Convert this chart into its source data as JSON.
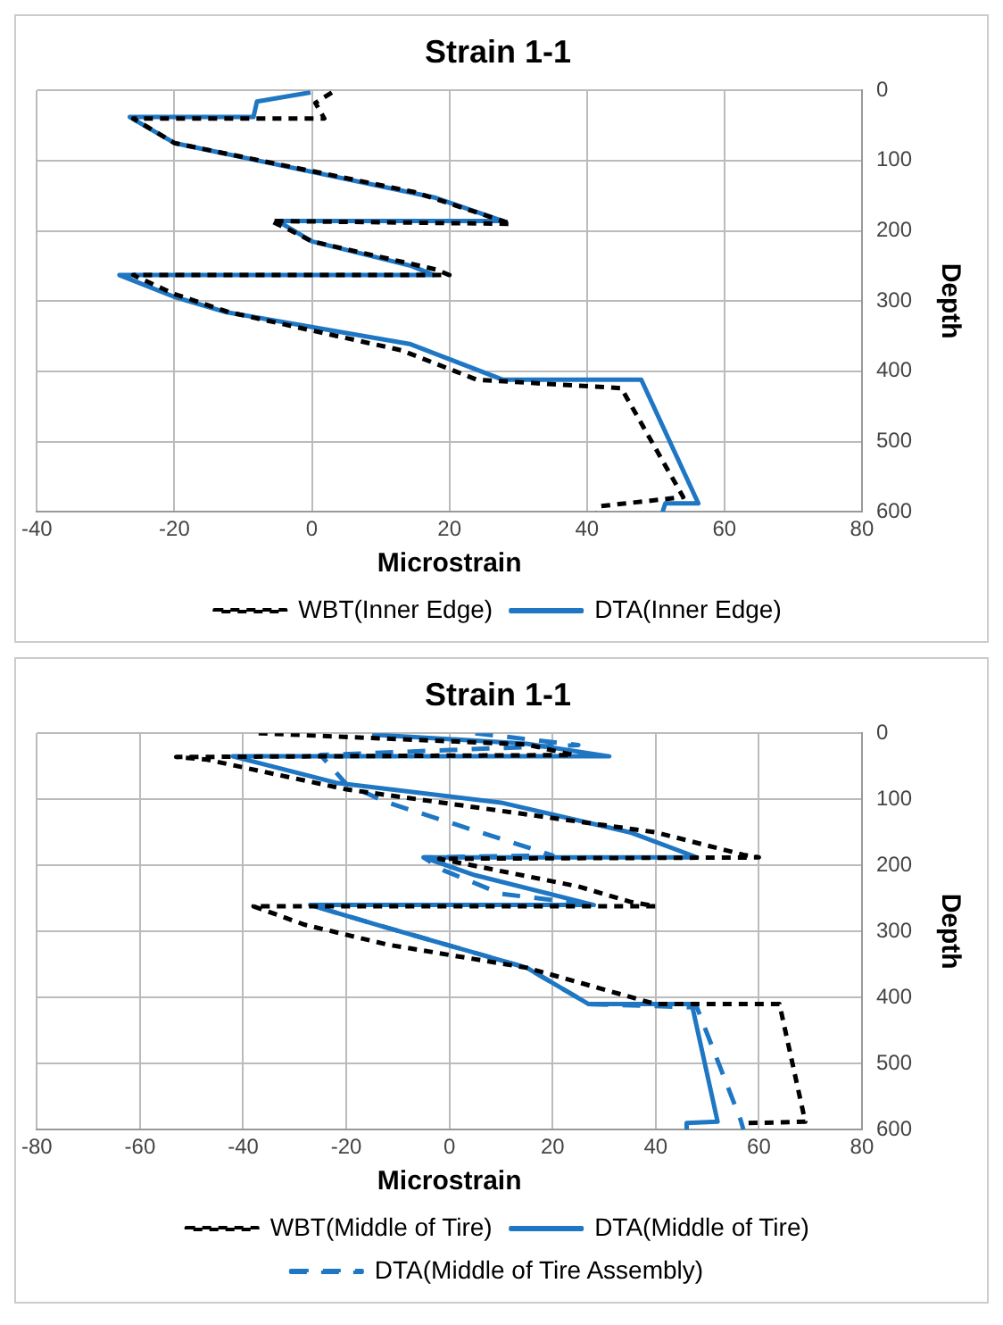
{
  "chart_data": [
    {
      "type": "line",
      "title": "Strain 1-1",
      "xlabel": "Microstrain",
      "ylabel": "Depth",
      "xlim": [
        -40,
        80
      ],
      "xticks": [
        -40,
        -20,
        0,
        20,
        40,
        60,
        80
      ],
      "ylim": [
        600,
        0
      ],
      "yticks": [
        0,
        100,
        200,
        300,
        400,
        500,
        600
      ],
      "grid": true,
      "legend": "bottom",
      "marker": "none",
      "series": [
        {
          "name": "WBT(Inner Edge)",
          "color": "#000000",
          "line_style": "dashed",
          "x": [
            2.9,
            0.5,
            1.8,
            -26,
            -20,
            15,
            29,
            -6,
            -3,
            0,
            18,
            20,
            -26,
            -20,
            -12,
            13,
            24,
            45,
            54,
            42,
            41.5
          ],
          "values": [
            3,
            18,
            40,
            40,
            75,
            145,
            190,
            186,
            200,
            215,
            255,
            263,
            263,
            290,
            316,
            370,
            412,
            424,
            579,
            592,
            600
          ]
        },
        {
          "name": "DTA(Inner Edge)",
          "color": "#1f77c4",
          "line_style": "solid",
          "x": [
            -0.2,
            -8,
            -8.5,
            -26.5,
            -20,
            18,
            27.8,
            -5,
            0,
            14.5,
            17.7,
            -28,
            -20,
            -12.4,
            14.2,
            27.8,
            47.9,
            56.2,
            51.4,
            51
          ],
          "values": [
            3,
            16,
            38,
            38,
            75,
            153,
            186,
            186,
            215,
            250,
            263,
            263,
            294,
            316,
            361,
            412,
            412,
            588,
            588,
            600
          ]
        }
      ]
    },
    {
      "type": "line",
      "title": "Strain 1-1",
      "xlabel": "Microstrain",
      "ylabel": "Depth",
      "xlim": [
        -80,
        80
      ],
      "xticks": [
        -80,
        -60,
        -40,
        -20,
        0,
        20,
        40,
        60,
        80
      ],
      "ylim": [
        600,
        0
      ],
      "yticks": [
        0,
        100,
        200,
        300,
        400,
        500,
        600
      ],
      "grid": true,
      "legend": "bottom",
      "marker": "none",
      "series": [
        {
          "name": "WBT(Middle of Tire)",
          "color": "#000000",
          "line_style": "dashed",
          "x": [
            -37,
            15,
            24,
            -53,
            -47,
            -20,
            40,
            57,
            60,
            -2,
            25,
            35,
            40,
            -38,
            -28,
            -12,
            15,
            40,
            64,
            69,
            58,
            58
          ],
          "values": [
            0,
            17,
            33,
            36,
            40,
            85,
            150,
            184,
            188,
            190,
            232,
            255,
            262,
            262,
            290,
            320,
            355,
            410,
            410,
            588,
            590,
            600
          ]
        },
        {
          "name": "DTA(Middle of Tire)",
          "color": "#1f77c4",
          "line_style": "solid",
          "x": [
            -15,
            15,
            31,
            -42,
            -22,
            10,
            35,
            48,
            -5,
            5,
            28,
            -27,
            -14,
            15,
            27,
            47,
            52,
            46,
            46
          ],
          "values": [
            2,
            16,
            35,
            35,
            75,
            105,
            150,
            188,
            188,
            215,
            260,
            260,
            290,
            355,
            410,
            410,
            588,
            590,
            600
          ]
        },
        {
          "name": "DTA(Middle of Tire Assembly)",
          "color": "#1f77c4",
          "line_style": "longdash",
          "x": [
            5,
            25,
            -25,
            -20,
            -12,
            20,
            -5,
            -1,
            10,
            28,
            -27,
            -14,
            15,
            27,
            48,
            56.5,
            57
          ],
          "values": [
            0,
            18,
            33,
            77,
            105,
            185,
            188,
            208,
            243,
            260,
            260,
            290,
            355,
            410,
            415,
            586,
            600
          ]
        }
      ]
    }
  ]
}
